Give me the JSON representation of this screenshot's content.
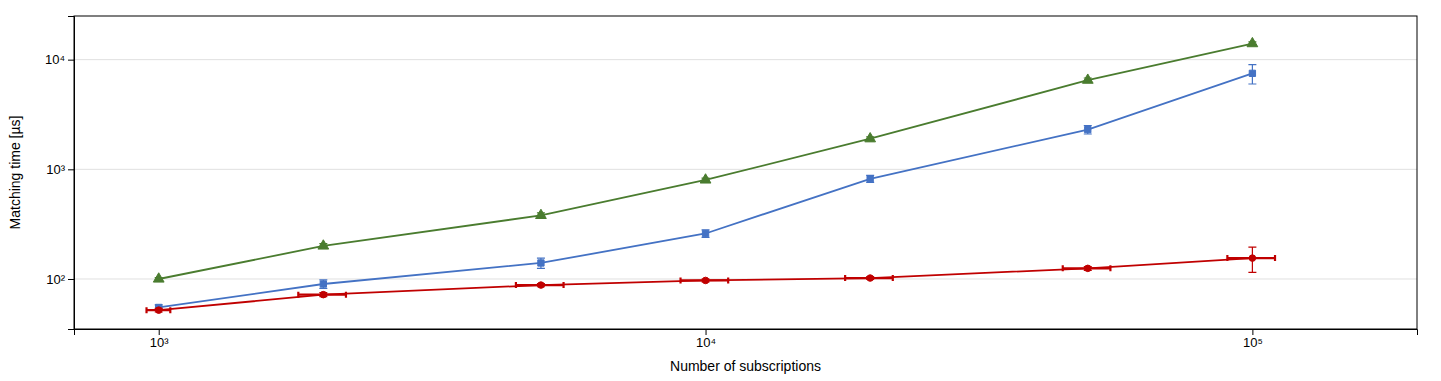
{
  "chart_data": {
    "type": "line",
    "xlabel": "Number of subscriptions",
    "ylabel": "Matching time [µs]",
    "log": true,
    "grid": "y",
    "x": [
      1000,
      2000,
      5000,
      10000,
      20000,
      50000,
      100000
    ],
    "xlim": [
      700,
      200000
    ],
    "ylim": [
      35,
      25000
    ],
    "xticks": [
      {
        "value": 1000,
        "label": "10³"
      },
      {
        "value": 10000,
        "label": "10⁴"
      },
      {
        "value": 100000,
        "label": "10⁵"
      }
    ],
    "yticks": [
      {
        "value": 100,
        "label": "10²"
      },
      {
        "value": 1000,
        "label": "10³"
      },
      {
        "value": 10000,
        "label": "10⁴"
      }
    ],
    "series": [
      {
        "color": "#4472c4",
        "marker": "square",
        "line_style": "solid",
        "values": [
          55,
          90,
          140,
          260,
          820,
          2300,
          7500
        ],
        "yerr_lo": [
          3,
          8,
          15,
          20,
          60,
          200,
          1500
        ],
        "yerr_hi": [
          3,
          8,
          15,
          20,
          60,
          200,
          1500
        ]
      },
      {
        "color": "#4a7c2f",
        "marker": "triangle-up",
        "line_style": "solid",
        "values": [
          100,
          200,
          380,
          800,
          1900,
          6500,
          14000
        ],
        "yerr_lo": [
          3,
          10,
          20,
          30,
          80,
          300,
          500
        ],
        "yerr_hi": [
          3,
          10,
          20,
          30,
          80,
          300,
          500
        ]
      },
      {
        "color": "#c00000",
        "marker": "circle",
        "line_style": "solid",
        "values": [
          52,
          72,
          88,
          97,
          102,
          125,
          155
        ],
        "yerr_lo": [
          2,
          3,
          3,
          3,
          3,
          5,
          40
        ],
        "yerr_hi": [
          2,
          3,
          3,
          3,
          3,
          5,
          40
        ],
        "xerr_lo": [
          50,
          200,
          500,
          1000,
          2000,
          5000,
          10000
        ],
        "xerr_hi": [
          50,
          200,
          500,
          1000,
          2000,
          5000,
          10000
        ]
      }
    ]
  }
}
